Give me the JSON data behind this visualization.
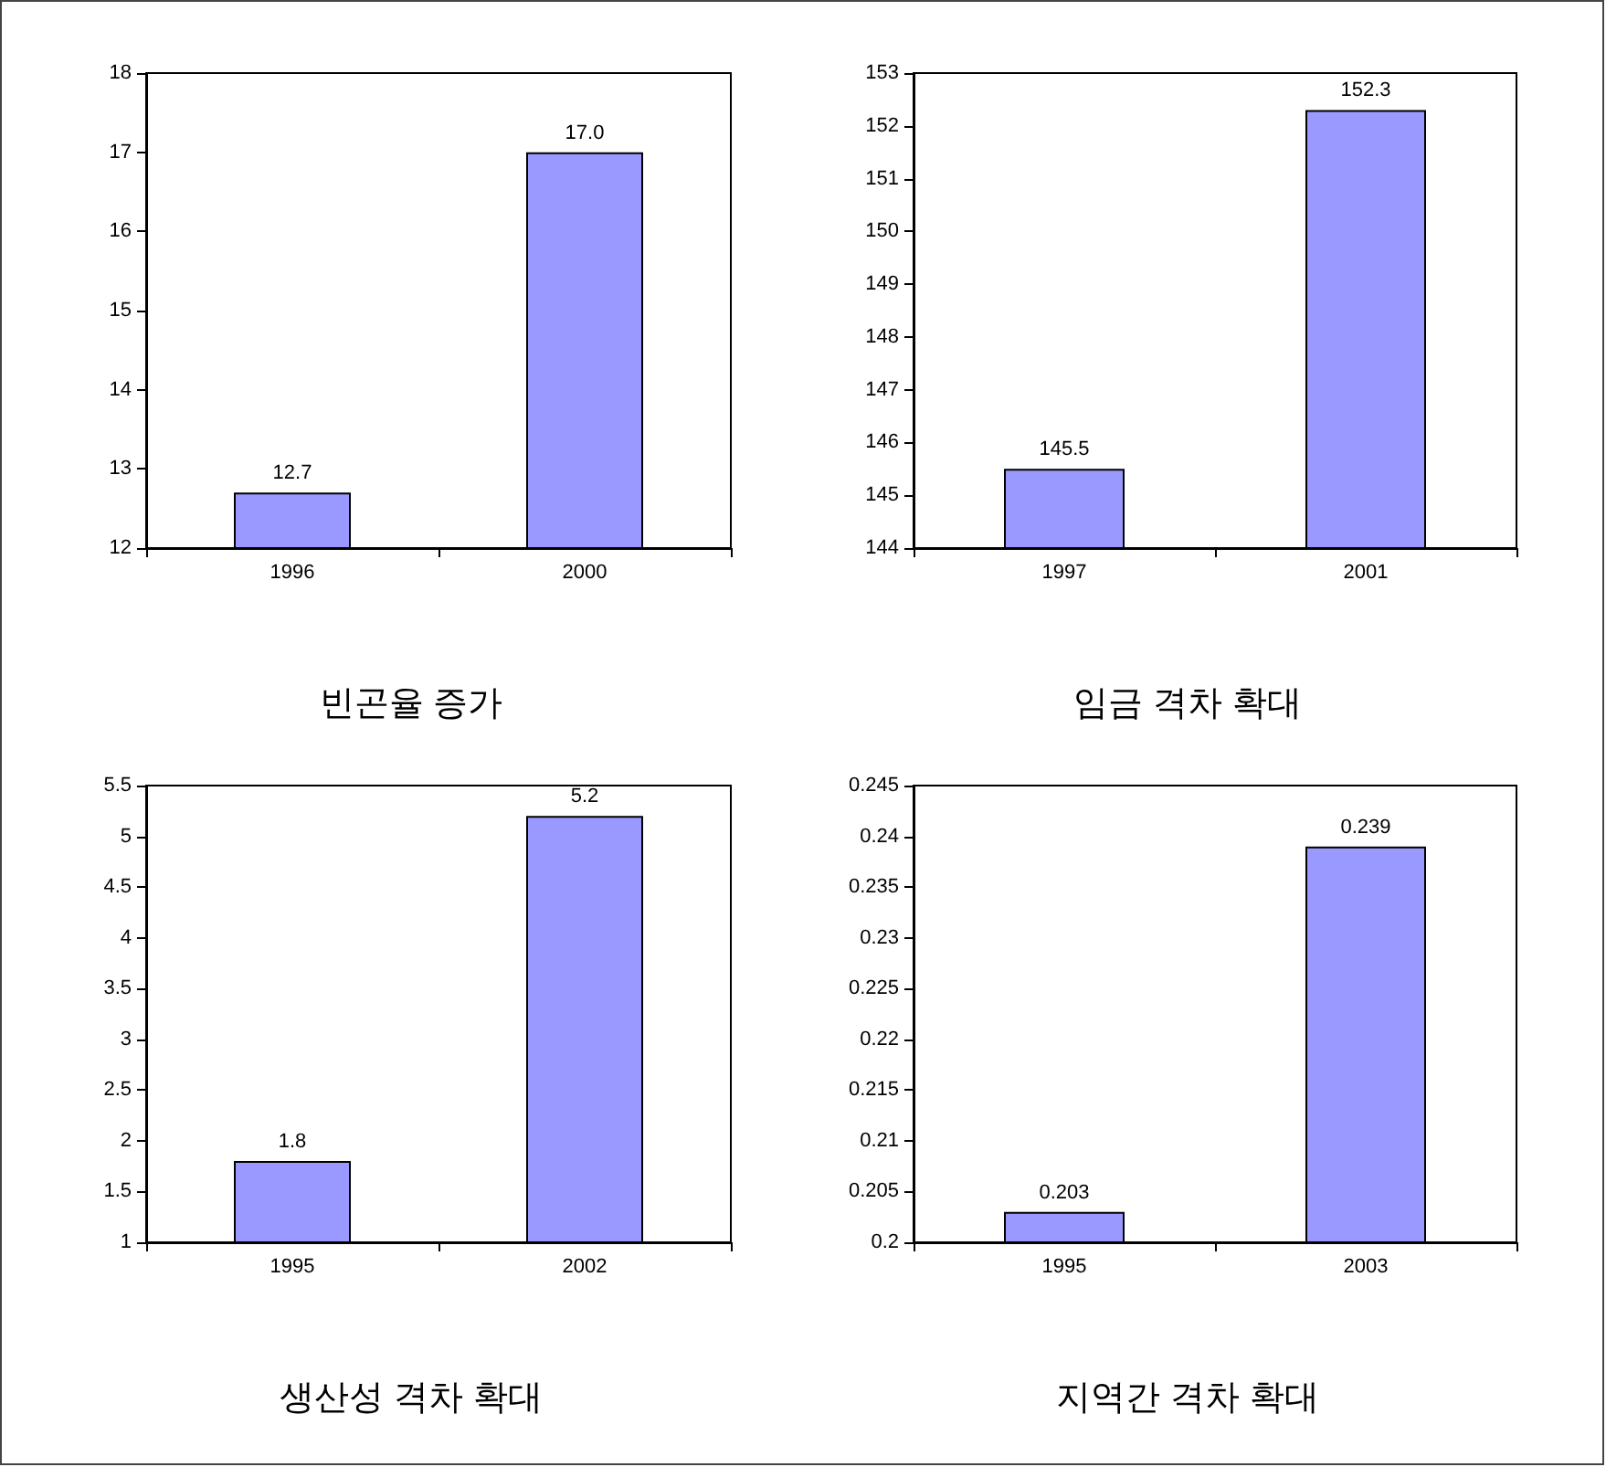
{
  "chart_data": [
    {
      "type": "bar",
      "title": "빈곤율 증가",
      "categories": [
        "1996",
        "2000"
      ],
      "values": [
        12.7,
        17.0
      ],
      "value_labels": [
        "12.7",
        "17.0"
      ],
      "color": "#9999ff",
      "ylim": [
        12,
        18
      ],
      "yticks": [
        12,
        13,
        14,
        15,
        16,
        17,
        18
      ],
      "grid": false
    },
    {
      "type": "bar",
      "title": "임금 격차 확대",
      "categories": [
        "1997",
        "2001"
      ],
      "values": [
        145.5,
        152.3
      ],
      "value_labels": [
        "145.5",
        "152.3"
      ],
      "color": "#9999ff",
      "ylim": [
        144,
        153
      ],
      "yticks": [
        144,
        145,
        146,
        147,
        148,
        149,
        150,
        151,
        152,
        153
      ],
      "grid": false
    },
    {
      "type": "bar",
      "title": "생산성 격차 확대",
      "categories": [
        "1995",
        "2002"
      ],
      "values": [
        1.8,
        5.2
      ],
      "value_labels": [
        "1.8",
        "5.2"
      ],
      "color": "#9999ff",
      "ylim": [
        1,
        5.5
      ],
      "yticks": [
        1,
        1.5,
        2,
        2.5,
        3,
        3.5,
        4,
        4.5,
        5,
        5.5
      ],
      "grid": false
    },
    {
      "type": "bar",
      "title": "지역간 격차 확대",
      "categories": [
        "1995",
        "2003"
      ],
      "values": [
        0.203,
        0.239
      ],
      "value_labels": [
        "0.203",
        "0.239"
      ],
      "color": "#9999ff",
      "ylim": [
        0.2,
        0.245
      ],
      "yticks": [
        0.2,
        0.205,
        0.21,
        0.215,
        0.22,
        0.225,
        0.23,
        0.235,
        0.24,
        0.245
      ],
      "grid": false
    }
  ]
}
